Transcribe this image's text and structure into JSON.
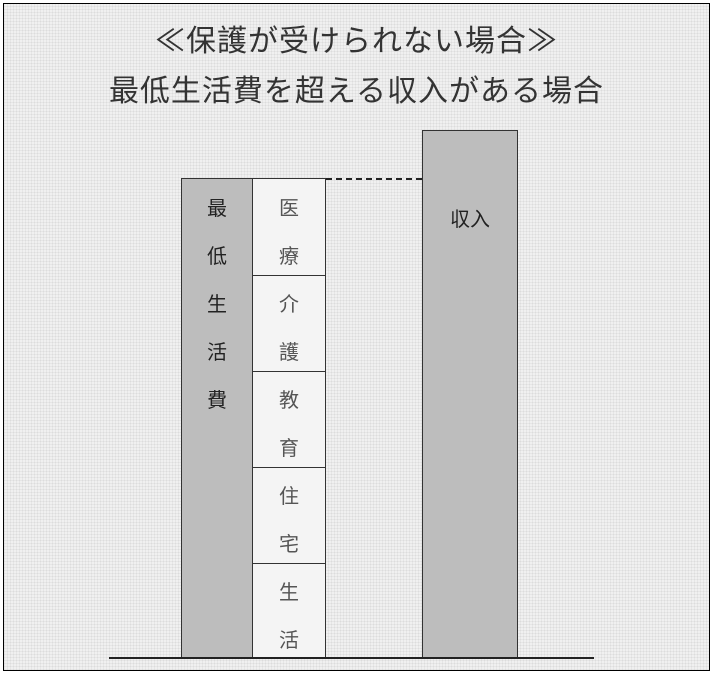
{
  "title_line1": "≪保護が受けられない場合≫",
  "title_line2": "最低生活費を超える収入がある場合",
  "minimum_living_cost": {
    "label_chars": [
      "最",
      "低",
      "生",
      "活",
      "費"
    ]
  },
  "breakdown": [
    {
      "chars": [
        "医",
        "療"
      ]
    },
    {
      "chars": [
        "介",
        "護"
      ]
    },
    {
      "chars": [
        "教",
        "育"
      ]
    },
    {
      "chars": [
        "住",
        "宅"
      ]
    },
    {
      "chars": [
        "生",
        "活"
      ]
    }
  ],
  "income": {
    "label": "収入"
  },
  "colors": {
    "bar_fill": "#bdbdbd",
    "background": "#f0f0f0",
    "line": "#222222"
  }
}
